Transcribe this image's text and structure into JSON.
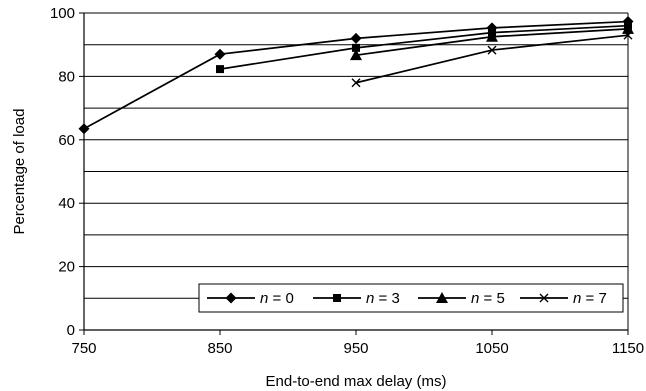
{
  "chart_data": {
    "type": "line",
    "title": "",
    "xlabel": "End-to-end max delay (ms)",
    "ylabel": "Percentage of load",
    "xlim": [
      750,
      1150
    ],
    "ylim": [
      0,
      100
    ],
    "x_ticks": [
      750,
      850,
      950,
      1050,
      1150
    ],
    "y_ticks": [
      0,
      20,
      40,
      60,
      80,
      100
    ],
    "y_gridlines": [
      10,
      20,
      30,
      40,
      50,
      60,
      70,
      80,
      90,
      100
    ],
    "grid": true,
    "legend_position": "bottom-right",
    "series": [
      {
        "name": "n = 0",
        "var": "n",
        "value": "0",
        "marker": "diamond",
        "points": [
          [
            750,
            63.5
          ],
          [
            850,
            87
          ],
          [
            950,
            92
          ],
          [
            1050,
            95.3
          ],
          [
            1150,
            97.3
          ]
        ]
      },
      {
        "name": "n = 3",
        "var": "n",
        "value": "3",
        "marker": "square",
        "points": [
          [
            850,
            82.3
          ],
          [
            950,
            89
          ],
          [
            1050,
            93.8
          ],
          [
            1150,
            96
          ]
        ]
      },
      {
        "name": "n = 5",
        "var": "n",
        "value": "5",
        "marker": "triangle",
        "points": [
          [
            950,
            86.7
          ],
          [
            1050,
            92.5
          ],
          [
            1150,
            95
          ]
        ]
      },
      {
        "name": "n = 7",
        "var": "n",
        "value": "7",
        "marker": "x",
        "points": [
          [
            950,
            78
          ],
          [
            1050,
            88.3
          ],
          [
            1150,
            93
          ]
        ]
      }
    ]
  }
}
